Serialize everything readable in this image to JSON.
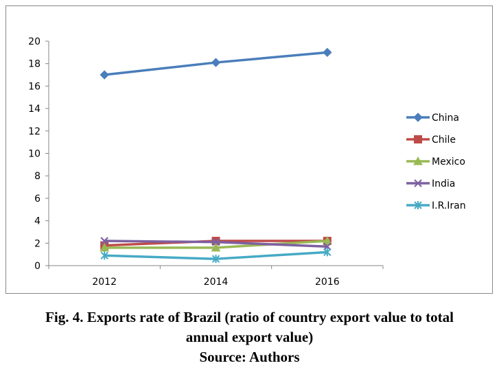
{
  "chart_data": {
    "type": "line",
    "x": [
      "2012",
      "2014",
      "2016"
    ],
    "ylim": [
      0,
      20
    ],
    "yticks": [
      0,
      2,
      4,
      6,
      8,
      10,
      12,
      14,
      16,
      18,
      20
    ],
    "gridlines": false,
    "legend_position": "right",
    "series": [
      {
        "name": "China",
        "values": [
          17.0,
          18.1,
          19.0
        ],
        "color": "#4a7ebb",
        "marker": "diamond"
      },
      {
        "name": "Chile",
        "values": [
          1.8,
          2.2,
          2.2
        ],
        "color": "#be4b48",
        "marker": "square"
      },
      {
        "name": "Mexico",
        "values": [
          1.6,
          1.6,
          2.2
        ],
        "color": "#98b954",
        "marker": "triangle"
      },
      {
        "name": "India",
        "values": [
          2.2,
          2.1,
          1.7
        ],
        "color": "#7d60a0",
        "marker": "x"
      },
      {
        "name": "I.R.Iran",
        "values": [
          0.9,
          0.6,
          1.2
        ],
        "color": "#46aac5",
        "marker": "star"
      }
    ]
  },
  "caption": {
    "line1": "Fig. 4. Exports rate of Brazil (ratio of country export value to total",
    "line2": "annual export value)",
    "line3": "Source: Authors"
  }
}
